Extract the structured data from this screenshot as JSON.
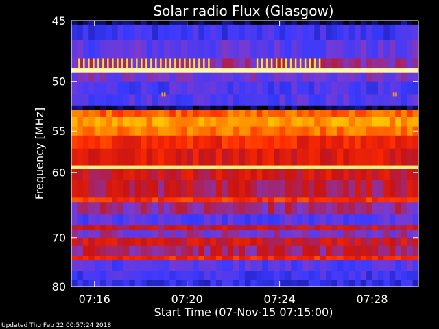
{
  "chart_data": {
    "type": "heatmap",
    "title": "Solar radio Flux (Glasgow)",
    "ylabel": "Frequency [MHz]",
    "xlabel": "Start Time (07-Nov-15 07:15:00)",
    "footer": "Updated Thu Feb 22 00:57:24 2018",
    "x_unit": "minutes after 07:15:00",
    "xlim": [
      0.0,
      15.0
    ],
    "ylim": [
      45.0,
      80.0
    ],
    "y_ticks": [
      {
        "value": 45,
        "label": "45"
      },
      {
        "value": 50,
        "label": "50"
      },
      {
        "value": 55,
        "label": "55"
      },
      {
        "value": 60,
        "label": "60"
      },
      {
        "value": 70,
        "label": "70"
      },
      {
        "value": 80,
        "label": "80"
      }
    ],
    "x_ticks": [
      {
        "value": 1,
        "label": "07:16"
      },
      {
        "value": 5,
        "label": "07:20"
      },
      {
        "value": 9,
        "label": "07:24"
      },
      {
        "value": 13,
        "label": "07:28"
      }
    ],
    "colormap": [
      "#000000",
      "#1a1aa8",
      "#3a3aff",
      "#7a3ad0",
      "#c81414",
      "#ff2a00",
      "#ff8a00",
      "#ffd400",
      "#ffffc8"
    ],
    "frequency_bands": [
      {
        "from": 45.0,
        "to": 45.3,
        "level": 0.05
      },
      {
        "from": 45.3,
        "to": 46.5,
        "level": 0.25
      },
      {
        "from": 46.5,
        "to": 48.0,
        "level": 0.32
      },
      {
        "from": 48.0,
        "to": 48.8,
        "level": 0.4
      },
      {
        "from": 48.8,
        "to": 49.2,
        "level": 0.98
      },
      {
        "from": 49.2,
        "to": 50.0,
        "level": 0.35
      },
      {
        "from": 50.0,
        "to": 51.2,
        "level": 0.28
      },
      {
        "from": 51.2,
        "to": 52.3,
        "level": 0.3
      },
      {
        "from": 52.3,
        "to": 52.8,
        "level": 0.05
      },
      {
        "from": 52.8,
        "to": 53.5,
        "level": 0.7
      },
      {
        "from": 53.5,
        "to": 54.5,
        "level": 0.78
      },
      {
        "from": 54.5,
        "to": 55.5,
        "level": 0.72
      },
      {
        "from": 55.5,
        "to": 57.0,
        "level": 0.6
      },
      {
        "from": 57.0,
        "to": 59.1,
        "level": 0.55
      },
      {
        "from": 59.1,
        "to": 59.5,
        "level": 0.95
      },
      {
        "from": 59.5,
        "to": 61.0,
        "level": 0.52
      },
      {
        "from": 61.0,
        "to": 63.5,
        "level": 0.48
      },
      {
        "from": 63.5,
        "to": 64.2,
        "level": 0.62
      },
      {
        "from": 64.2,
        "to": 66.0,
        "level": 0.42
      },
      {
        "from": 66.0,
        "to": 67.8,
        "level": 0.3
      },
      {
        "from": 67.8,
        "to": 68.6,
        "level": 0.5
      },
      {
        "from": 68.6,
        "to": 70.0,
        "level": 0.38
      },
      {
        "from": 70.0,
        "to": 71.5,
        "level": 0.52
      },
      {
        "from": 71.5,
        "to": 73.5,
        "level": 0.45
      },
      {
        "from": 73.5,
        "to": 74.3,
        "level": 0.6
      },
      {
        "from": 74.3,
        "to": 76.5,
        "level": 0.3
      },
      {
        "from": 76.5,
        "to": 78.5,
        "level": 0.26
      },
      {
        "from": 78.5,
        "to": 80.0,
        "level": 0.22
      }
    ],
    "bursts": [
      {
        "t_start": 0.3,
        "t_end": 5.9,
        "f_start": 48.0,
        "f_end": 48.8,
        "level": 0.9
      },
      {
        "t_start": 8.0,
        "t_end": 10.7,
        "f_start": 48.0,
        "f_end": 48.8,
        "level": 0.9
      },
      {
        "t_start": 3.9,
        "t_end": 4.0,
        "f_start": 51.0,
        "f_end": 51.4,
        "level": 0.8
      },
      {
        "t_start": 13.9,
        "t_end": 14.0,
        "f_start": 51.0,
        "f_end": 51.4,
        "level": 0.8
      }
    ]
  }
}
